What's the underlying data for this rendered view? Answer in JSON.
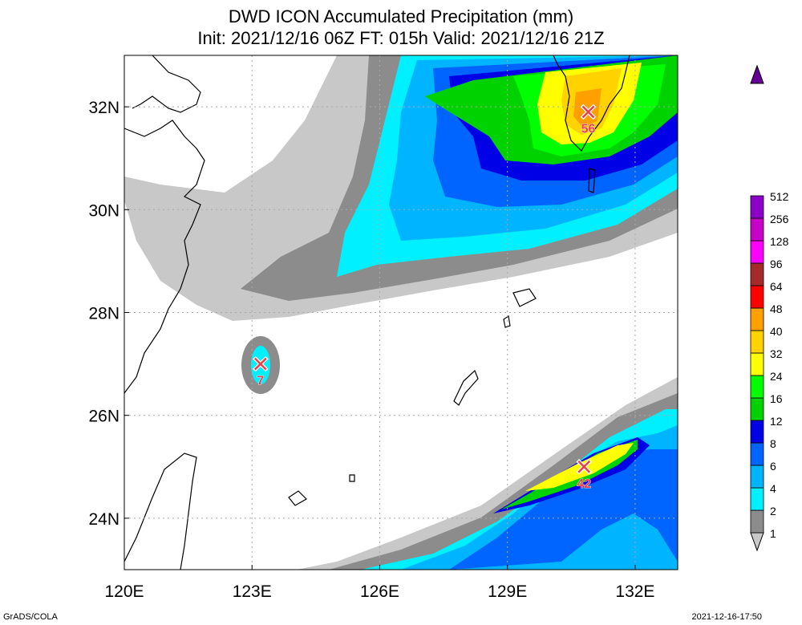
{
  "title": {
    "line1": "DWD ICON Accumulated Precipitation (mm)",
    "line2": "Init: 2021/12/16 06Z  FT: 015h  Valid: 2021/12/16 21Z"
  },
  "map": {
    "lon_range": [
      120,
      133
    ],
    "lat_range": [
      23,
      33
    ],
    "lon_ticks": [
      {
        "value": 120,
        "label": "120E"
      },
      {
        "value": 123,
        "label": "123E"
      },
      {
        "value": 126,
        "label": "126E"
      },
      {
        "value": 129,
        "label": "129E"
      },
      {
        "value": 132,
        "label": "132E"
      }
    ],
    "lat_ticks": [
      {
        "value": 24,
        "label": "24N"
      },
      {
        "value": 26,
        "label": "26N"
      },
      {
        "value": 28,
        "label": "28N"
      },
      {
        "value": 30,
        "label": "30N"
      },
      {
        "value": 32,
        "label": "32N"
      }
    ],
    "grid": true,
    "maxima": [
      {
        "lon": 130.9,
        "lat": 31.9,
        "label": "56"
      },
      {
        "lon": 123.2,
        "lat": 27.0,
        "label": "7"
      },
      {
        "lon": 130.8,
        "lat": 25.0,
        "label": "42"
      }
    ]
  },
  "colorbar": {
    "levels": [
      "1",
      "2",
      "4",
      "6",
      "8",
      "12",
      "16",
      "24",
      "32",
      "40",
      "48",
      "64",
      "96",
      "128",
      "256",
      "512"
    ],
    "colors": [
      "#c8c8c8",
      "#8c8c8c",
      "#00f0ff",
      "#00b4ff",
      "#0064ff",
      "#0000e6",
      "#00d200",
      "#00ff00",
      "#ffff00",
      "#ffd200",
      "#ffa000",
      "#ff0000",
      "#a52a2a",
      "#ff00ff",
      "#c800c8",
      "#8c00c8",
      "#640096"
    ]
  },
  "footer": {
    "left": "GrADS/COLA",
    "right": "2021-12-16-17:50"
  }
}
